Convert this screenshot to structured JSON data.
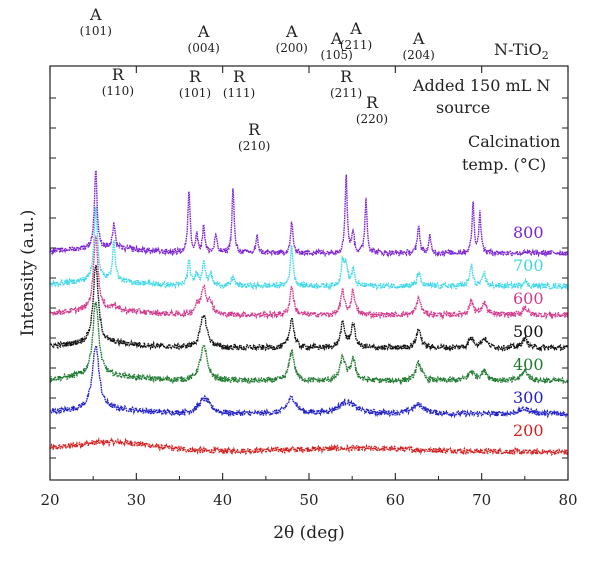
{
  "chart_data": {
    "type": "line",
    "title": "",
    "xlabel": "2θ (deg)",
    "ylabel": "Intensity (a.u.)",
    "xlim": [
      20,
      80
    ],
    "x_ticks": [
      20,
      30,
      40,
      50,
      60,
      70,
      80
    ],
    "grid": false,
    "legend": "none",
    "annotations": {
      "material": "N-TiO",
      "material_sub": "2",
      "source_line1": "Added 150 mL N",
      "source_line2": "source",
      "calc_line1": "Calcination",
      "calc_line2": "temp. (°C)"
    },
    "peak_labels": [
      {
        "phase": "A",
        "hkl": "(101)",
        "x": 25.3
      },
      {
        "phase": "R",
        "hkl": "(110)",
        "x": 27.4
      },
      {
        "phase": "R",
        "hkl": "(101)",
        "x": 36.1
      },
      {
        "phase": "A",
        "hkl": "(004)",
        "x": 37.8
      },
      {
        "phase": "R",
        "hkl": "(111)",
        "x": 41.2
      },
      {
        "phase": "R",
        "hkl": "(210)",
        "x": 44.0
      },
      {
        "phase": "A",
        "hkl": "(200)",
        "x": 48.0
      },
      {
        "phase": "A",
        "hkl": "(105)",
        "x": 53.9
      },
      {
        "phase": "R",
        "hkl": "(211)",
        "x": 54.3
      },
      {
        "phase": "A",
        "hkl": "(211)",
        "x": 55.1
      },
      {
        "phase": "R",
        "hkl": "(220)",
        "x": 56.6
      },
      {
        "phase": "A",
        "hkl": "(204)",
        "x": 62.7
      }
    ],
    "series": [
      {
        "name": "200",
        "color": "#d42020",
        "offset": 0,
        "baseline": 0.5,
        "amorphous": true,
        "peaks": []
      },
      {
        "name": "300",
        "color": "#2020c8",
        "offset": 1,
        "baseline": 1.0,
        "peaks": [
          [
            25.3,
            6.4,
            0.45
          ],
          [
            37.9,
            1.5,
            0.8
          ],
          [
            48.0,
            1.6,
            0.6
          ],
          [
            54.4,
            1.2,
            1.2
          ],
          [
            62.7,
            0.9,
            0.8
          ],
          [
            75.0,
            0.5,
            0.8
          ]
        ]
      },
      {
        "name": "400",
        "color": "#1f7a30",
        "offset": 2,
        "baseline": 1.0,
        "peaks": [
          [
            25.3,
            7.5,
            0.4
          ],
          [
            37.8,
            3.4,
            0.5
          ],
          [
            48.0,
            3.0,
            0.35
          ],
          [
            53.9,
            2.3,
            0.35
          ],
          [
            55.1,
            2.1,
            0.35
          ],
          [
            62.7,
            1.8,
            0.4
          ],
          [
            68.8,
            0.9,
            0.45
          ],
          [
            70.3,
            0.9,
            0.45
          ],
          [
            75.0,
            1.0,
            0.45
          ]
        ]
      },
      {
        "name": "500",
        "color": "#111111",
        "offset": 3,
        "baseline": 1.0,
        "peaks": [
          [
            25.3,
            7.8,
            0.35
          ],
          [
            37.8,
            3.3,
            0.45
          ],
          [
            48.0,
            3.0,
            0.3
          ],
          [
            53.9,
            2.4,
            0.3
          ],
          [
            55.1,
            2.3,
            0.3
          ],
          [
            62.7,
            1.8,
            0.35
          ],
          [
            68.8,
            0.9,
            0.4
          ],
          [
            70.3,
            0.9,
            0.4
          ],
          [
            75.0,
            0.9,
            0.4
          ]
        ]
      },
      {
        "name": "600",
        "color": "#d43a8c",
        "offset": 4,
        "baseline": 1.0,
        "peaks": [
          [
            25.3,
            7.6,
            0.3
          ],
          [
            27.4,
            0.6,
            0.25
          ],
          [
            37.0,
            0.8,
            0.25
          ],
          [
            37.8,
            2.8,
            0.35
          ],
          [
            38.6,
            1.1,
            0.3
          ],
          [
            48.0,
            2.9,
            0.25
          ],
          [
            53.9,
            2.4,
            0.25
          ],
          [
            55.1,
            2.4,
            0.25
          ],
          [
            62.7,
            1.7,
            0.3
          ],
          [
            68.8,
            1.4,
            0.3
          ],
          [
            70.3,
            1.2,
            0.3
          ],
          [
            75.0,
            0.8,
            0.3
          ]
        ]
      },
      {
        "name": "700",
        "color": "#40d8e8",
        "offset": 5,
        "baseline": 0.6,
        "peaks": [
          [
            25.3,
            7.3,
            0.25
          ],
          [
            27.4,
            3.9,
            0.2
          ],
          [
            36.1,
            2.3,
            0.2
          ],
          [
            37.0,
            1.3,
            0.2
          ],
          [
            37.8,
            2.5,
            0.2
          ],
          [
            38.6,
            1.2,
            0.2
          ],
          [
            41.2,
            0.9,
            0.2
          ],
          [
            48.0,
            3.9,
            0.2
          ],
          [
            53.9,
            2.5,
            0.2
          ],
          [
            54.3,
            2.0,
            0.2
          ],
          [
            55.1,
            1.6,
            0.2
          ],
          [
            62.7,
            1.4,
            0.2
          ],
          [
            68.8,
            2.0,
            0.2
          ],
          [
            70.3,
            1.3,
            0.2
          ],
          [
            75.0,
            0.6,
            0.2
          ]
        ]
      },
      {
        "name": "800",
        "color": "#7a22d4",
        "offset": 6,
        "baseline": 0.6,
        "peaks": [
          [
            25.3,
            8.0,
            0.18
          ],
          [
            27.4,
            2.3,
            0.18
          ],
          [
            36.1,
            6.3,
            0.15
          ],
          [
            37.0,
            1.8,
            0.15
          ],
          [
            37.8,
            2.8,
            0.15
          ],
          [
            39.2,
            1.8,
            0.15
          ],
          [
            41.2,
            6.4,
            0.15
          ],
          [
            44.0,
            1.6,
            0.15
          ],
          [
            48.0,
            3.2,
            0.15
          ],
          [
            54.3,
            7.8,
            0.15
          ],
          [
            55.1,
            2.2,
            0.15
          ],
          [
            56.6,
            5.4,
            0.15
          ],
          [
            62.7,
            2.9,
            0.15
          ],
          [
            64.0,
            1.6,
            0.15
          ],
          [
            69.0,
            4.9,
            0.15
          ],
          [
            69.8,
            3.9,
            0.15
          ]
        ]
      }
    ]
  }
}
